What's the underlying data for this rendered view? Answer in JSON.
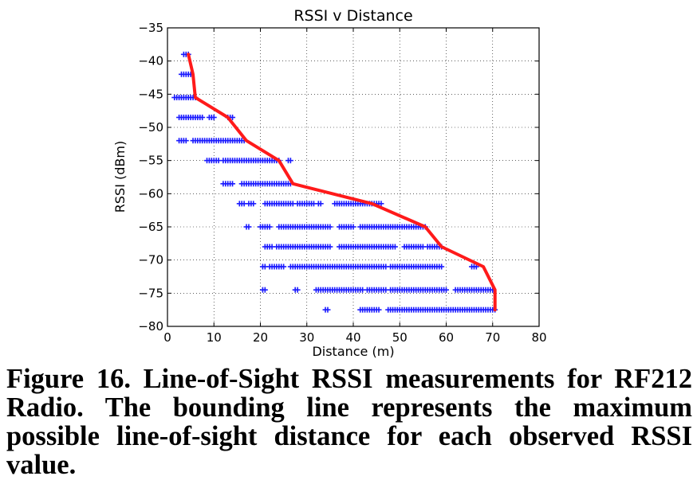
{
  "caption": "Figure 16. Line-of-Sight RSSI measurements for RF212 Radio. The bounding line represents the maximum possible line-of-sight distance for each observed RSSI value.",
  "chart_data": {
    "type": "scatter",
    "title": "RSSI v Distance",
    "xlabel": "Distance (m)",
    "ylabel": "RSSI (dBm)",
    "xlim": [
      0,
      80
    ],
    "ylim": [
      -80,
      -35
    ],
    "xticks": [
      0,
      10,
      20,
      30,
      40,
      50,
      60,
      70,
      80
    ],
    "yticks": [
      -35,
      -40,
      -45,
      -50,
      -55,
      -60,
      -65,
      -70,
      -75,
      -80
    ],
    "grid": true,
    "colors": {
      "points": "#1a1aff",
      "bound_line": "#ff1a1a"
    },
    "series": [
      {
        "kind": "scatter",
        "marker": "+",
        "rows": [
          {
            "y": -39,
            "ranges": [
              [
                3.5,
                4.5
              ]
            ]
          },
          {
            "y": -42,
            "ranges": [
              [
                3,
                5
              ]
            ]
          },
          {
            "y": -45.5,
            "ranges": [
              [
                1.5,
                6
              ]
            ]
          },
          {
            "y": -48.5,
            "ranges": [
              [
                2.5,
                7.5
              ],
              [
                9,
                10
              ],
              [
                13,
                14
              ]
            ]
          },
          {
            "y": -52,
            "ranges": [
              [
                2.5,
                4
              ],
              [
                5.5,
                16.5
              ]
            ]
          },
          {
            "y": -55,
            "ranges": [
              [
                8.5,
                11
              ],
              [
                12,
                19
              ],
              [
                19.5,
                24
              ],
              [
                26,
                26.5
              ]
            ]
          },
          {
            "y": -58.5,
            "ranges": [
              [
                12,
                14
              ],
              [
                16,
                26.5
              ]
            ]
          },
          {
            "y": -61.5,
            "ranges": [
              [
                15.5,
                16.5
              ],
              [
                17.5,
                18.5
              ],
              [
                21,
                27
              ],
              [
                28,
                31.5
              ],
              [
                32.5,
                33
              ],
              [
                36,
                38
              ],
              [
                38.5,
                46
              ]
            ]
          },
          {
            "y": -65,
            "ranges": [
              [
                17,
                17.5
              ],
              [
                20,
                22
              ],
              [
                24,
                35
              ],
              [
                37,
                40
              ],
              [
                41.5,
                42.5
              ],
              [
                43,
                54
              ],
              [
                54.5,
                55.5
              ]
            ]
          },
          {
            "y": -68,
            "ranges": [
              [
                21,
                22.5
              ],
              [
                23.5,
                35
              ],
              [
                37,
                49
              ],
              [
                51,
                55
              ],
              [
                56,
                59
              ]
            ]
          },
          {
            "y": -71,
            "ranges": [
              [
                20.5,
                21
              ],
              [
                22,
                25
              ],
              [
                26.5,
                47
              ],
              [
                48,
                59
              ],
              [
                65.5,
                66.5
              ]
            ]
          },
          {
            "y": -74.5,
            "ranges": [
              [
                20.5,
                21
              ],
              [
                27.5,
                28
              ],
              [
                32,
                35
              ],
              [
                35.5,
                42
              ],
              [
                43,
                47
              ],
              [
                48,
                60
              ],
              [
                62,
                68.5
              ],
              [
                69,
                70
              ]
            ]
          },
          {
            "y": -77.5,
            "ranges": [
              [
                34,
                34.5
              ],
              [
                41.5,
                45.5
              ],
              [
                47.5,
                70.5
              ]
            ]
          }
        ]
      },
      {
        "kind": "line",
        "x": [
          4.5,
          5.5,
          6,
          13,
          17,
          24,
          27,
          44,
          55.5,
          59,
          68,
          70.5,
          70.5
        ],
        "y": [
          -39,
          -42,
          -45.5,
          -48.5,
          -52,
          -55,
          -58.5,
          -61.5,
          -65,
          -68,
          -71,
          -74.5,
          -77.5
        ]
      }
    ]
  }
}
